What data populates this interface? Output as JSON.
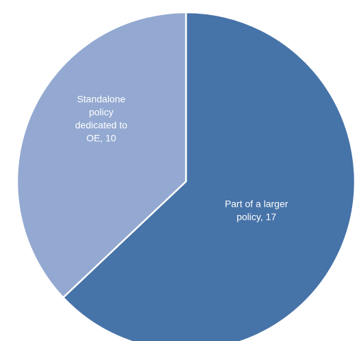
{
  "chart_data": {
    "type": "pie",
    "title": "",
    "slices": [
      {
        "label_lines": [
          "Part of a larger",
          "policy, 17"
        ],
        "category": "Part of a larger policy",
        "value": 17,
        "color": "#4673a8"
      },
      {
        "label_lines": [
          "Standalone",
          "policy",
          "dedicated to",
          "OE, 10"
        ],
        "category": "Standalone policy dedicated to OE",
        "value": 10,
        "color": "#93a9d1"
      }
    ],
    "start_angle_deg": 0,
    "direction": "clockwise",
    "slice_border_color": "#ffffff",
    "label_color": "#ffffff"
  }
}
